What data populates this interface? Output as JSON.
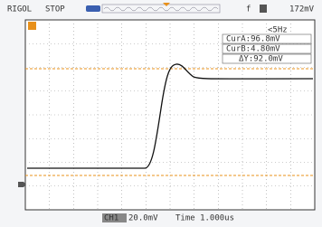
{
  "header": {
    "brand": "RIGOL",
    "status": "STOP",
    "trigger_source": "f",
    "trigger_level": "172mV"
  },
  "measurements": {
    "frequency": "<5Hz",
    "cursors": [
      "CurA:96.8mV",
      "CurB:4.80mV",
      "ΔY:92.0mV"
    ]
  },
  "footer": {
    "channel": "CH1",
    "scale": "20.0mV",
    "timebase": "Time 1.000us"
  }
}
